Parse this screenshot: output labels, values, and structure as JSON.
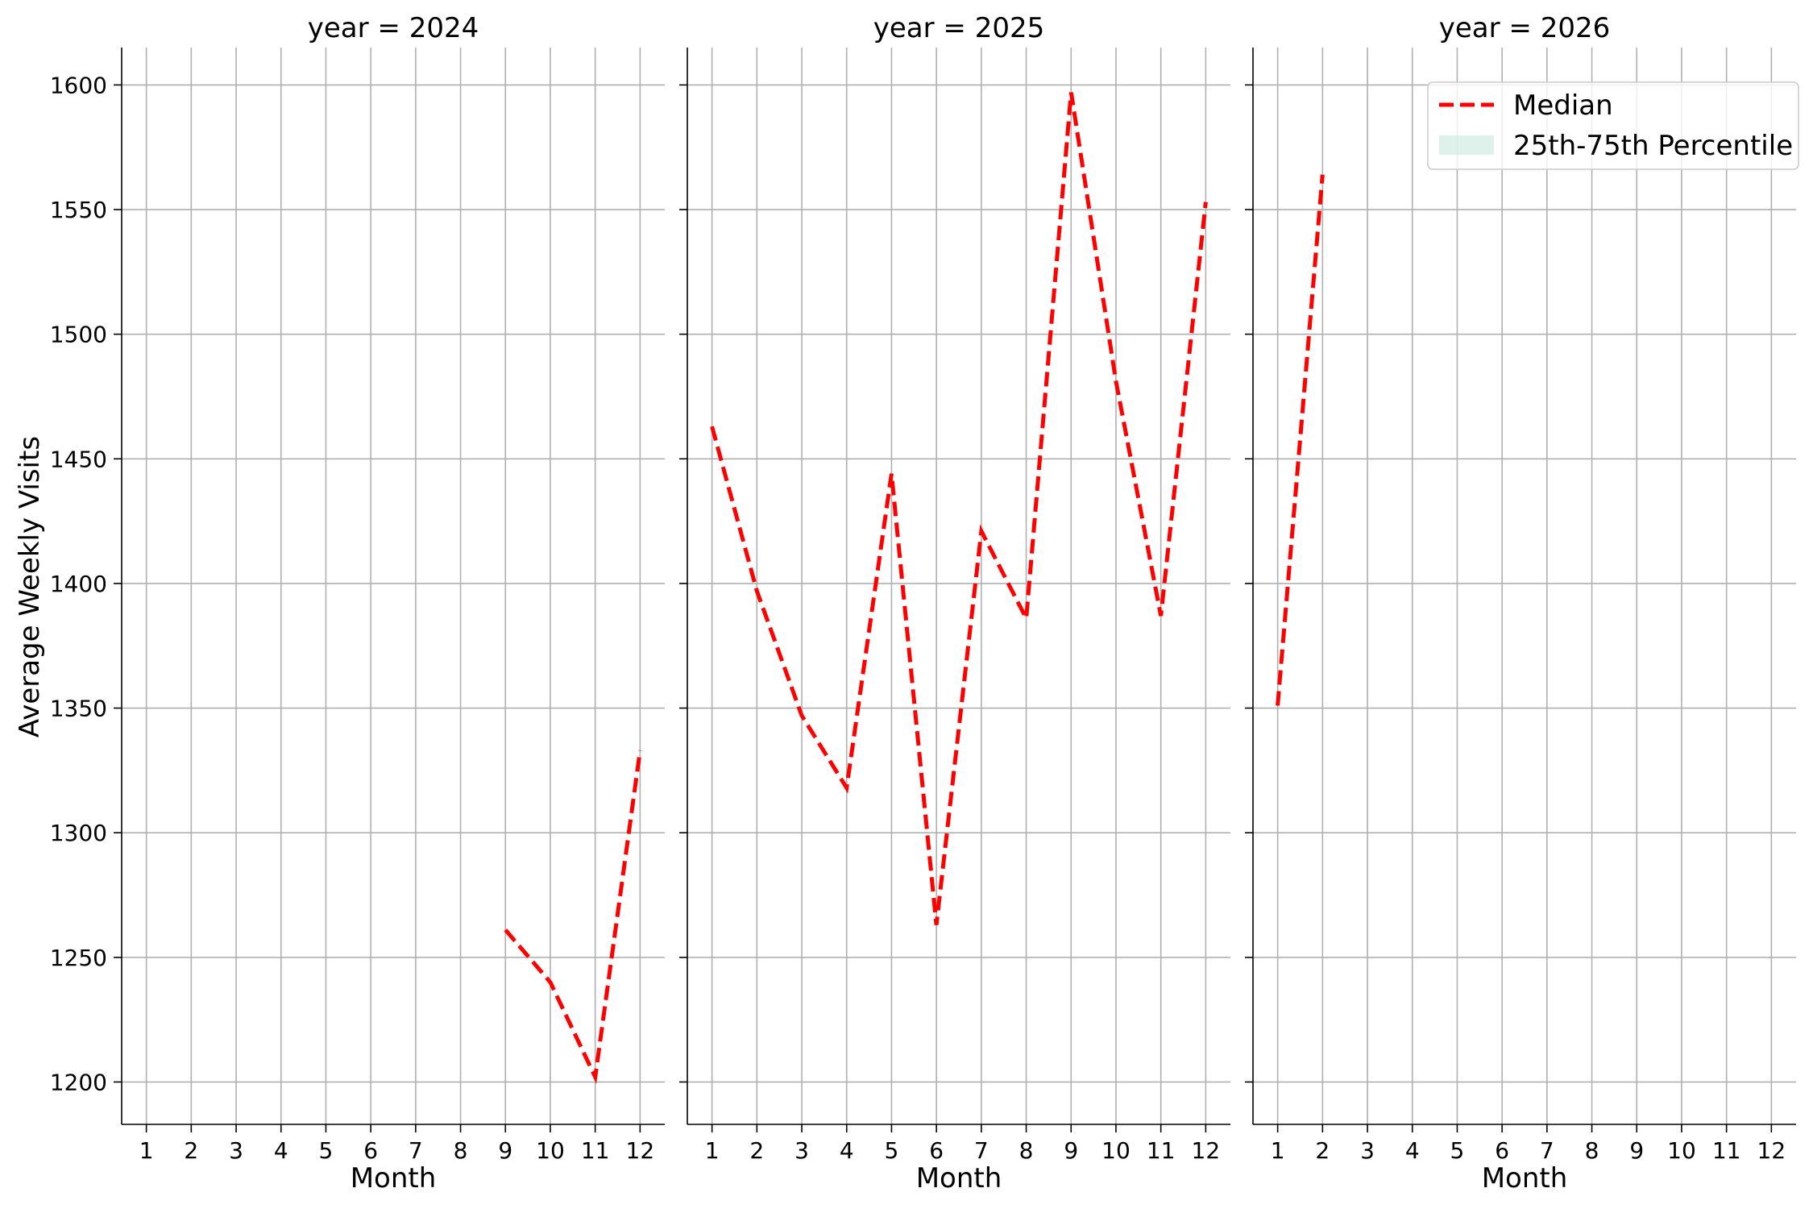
{
  "chart_data": {
    "type": "line",
    "ylabel": "Average Weekly Visits",
    "xlabel": "Month",
    "x_ticks": [
      1,
      2,
      3,
      4,
      5,
      6,
      7,
      8,
      9,
      10,
      11,
      12
    ],
    "y_ticks": [
      1200,
      1250,
      1300,
      1350,
      1400,
      1450,
      1500,
      1550,
      1600
    ],
    "xlim": [
      0.45,
      12.55
    ],
    "ylim": [
      1183,
      1615
    ],
    "grid": true,
    "shared_y": true,
    "legend": {
      "placement": "top-right of last panel",
      "entries": [
        {
          "label": "Median",
          "style": "dashed-line",
          "color": "#ff0000"
        },
        {
          "label": "25th-75th Percentile",
          "style": "fill",
          "color": "#c8e8dc"
        }
      ]
    },
    "colors": {
      "median": "#ff0000",
      "band": "#c8e8dc",
      "grid": "#b0b0b0"
    },
    "panels": [
      {
        "title": "year = 2024",
        "series": [
          {
            "name": "Median",
            "x": [
              9,
              10,
              11,
              12
            ],
            "y": [
              1261,
              1240,
              1202,
              1333
            ]
          }
        ]
      },
      {
        "title": "year = 2025",
        "series": [
          {
            "name": "Median",
            "x": [
              1,
              2,
              3,
              4,
              5,
              6,
              7,
              8,
              9,
              10,
              11,
              12
            ],
            "y": [
              1463,
              1397,
              1347,
              1318,
              1444,
              1263,
              1421,
              1386,
              1597,
              1481,
              1387,
              1553
            ]
          }
        ]
      },
      {
        "title": "year = 2026",
        "series": [
          {
            "name": "Median",
            "x": [
              1,
              2
            ],
            "y": [
              1351,
              1564
            ]
          }
        ]
      }
    ]
  }
}
